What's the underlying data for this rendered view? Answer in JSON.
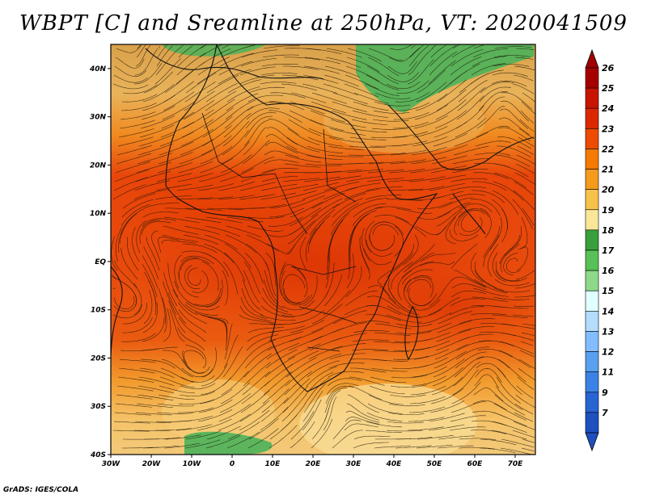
{
  "title": "WBPT [C] and Sreamline at 250hPa, VT: 2020041509",
  "credit": "GrADS: IGES/COLA",
  "map": {
    "lat_labels": [
      "40N",
      "30N",
      "20N",
      "10N",
      "EQ",
      "10S",
      "20S",
      "30S",
      "40S"
    ],
    "lon_labels": [
      "30W",
      "20W",
      "10W",
      "0",
      "10E",
      "20E",
      "30E",
      "40E",
      "50E",
      "60E",
      "70E"
    ],
    "lat_range": [
      -40,
      45
    ],
    "lon_range": [
      -30,
      75
    ]
  },
  "colorbar": {
    "labels": [
      "26",
      "25",
      "24",
      "23",
      "22",
      "21",
      "20",
      "19",
      "18",
      "17",
      "16",
      "15",
      "14",
      "13",
      "12",
      "11",
      "9",
      "7"
    ],
    "colors": [
      "#a50000",
      "#c81400",
      "#dc2800",
      "#ee4a00",
      "#f47a00",
      "#f69a1c",
      "#f7c24a",
      "#fbe79a",
      "#37a03a",
      "#57c157",
      "#8ed88a",
      "#e0ffff",
      "#b4dcff",
      "#82beff",
      "#5aa0f0",
      "#3c82e6",
      "#2864d2",
      "#1e50be"
    ]
  }
}
